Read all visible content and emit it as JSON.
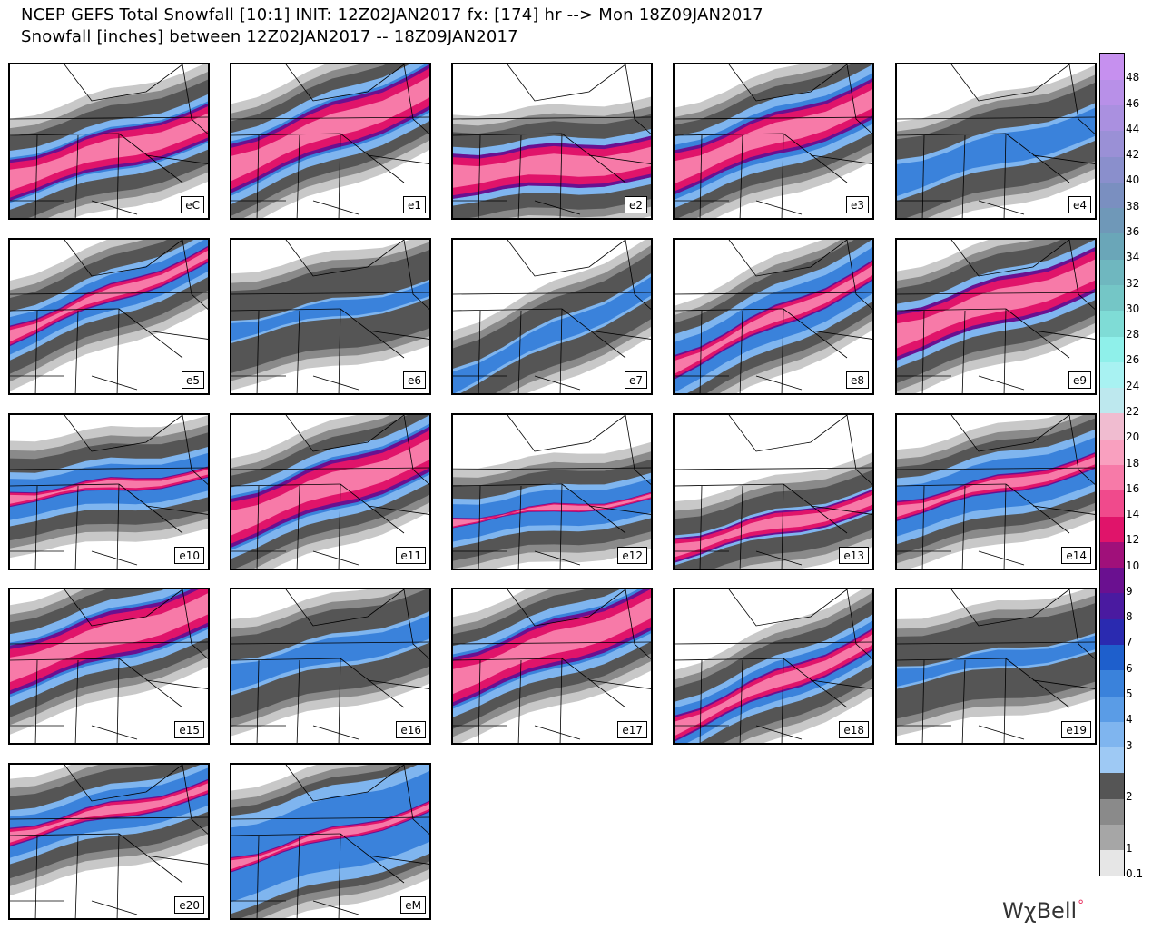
{
  "header": {
    "line1": "NCEP GEFS Total Snowfall [10:1] INIT: 12Z02JAN2017 fx: [174] hr --> Mon 18Z09JAN2017",
    "line2": "Snowfall [inches] between 12Z02JAN2017 -- 18Z09JAN2017"
  },
  "panels": [
    {
      "label": "eC"
    },
    {
      "label": "e1"
    },
    {
      "label": "e2"
    },
    {
      "label": "e3"
    },
    {
      "label": "e4"
    },
    {
      "label": "e5"
    },
    {
      "label": "e6"
    },
    {
      "label": "e7"
    },
    {
      "label": "e8"
    },
    {
      "label": "e9"
    },
    {
      "label": "e10"
    },
    {
      "label": "e11"
    },
    {
      "label": "e12"
    },
    {
      "label": "e13"
    },
    {
      "label": "e14"
    },
    {
      "label": "e15"
    },
    {
      "label": "e16"
    },
    {
      "label": "e17"
    },
    {
      "label": "e18"
    },
    {
      "label": "e19"
    },
    {
      "label": "e20"
    },
    {
      "label": "eM"
    }
  ],
  "color_scale": {
    "unit": "inches",
    "levels": [
      {
        "label": "0.1",
        "color": "#e6e6e6"
      },
      {
        "label": "1",
        "color": "#a6a6a6"
      },
      {
        "label": "",
        "color": "#8a8a8a"
      },
      {
        "label": "2",
        "color": "#555555"
      },
      {
        "label": "",
        "color": "#9ec9f4"
      },
      {
        "label": "3",
        "color": "#7fb5ef"
      },
      {
        "label": "4",
        "color": "#5a9ce6"
      },
      {
        "label": "5",
        "color": "#3a82db"
      },
      {
        "label": "6",
        "color": "#1e5fcc"
      },
      {
        "label": "7",
        "color": "#2a2ab0"
      },
      {
        "label": "8",
        "color": "#4a1aa0"
      },
      {
        "label": "9",
        "color": "#6a1090"
      },
      {
        "label": "10",
        "color": "#a0107a"
      },
      {
        "label": "12",
        "color": "#e0146a"
      },
      {
        "label": "14",
        "color": "#f04a8c"
      },
      {
        "label": "16",
        "color": "#f77aa8"
      },
      {
        "label": "18",
        "color": "#f9a0bf"
      },
      {
        "label": "20",
        "color": "#f0bcd0"
      },
      {
        "label": "22",
        "color": "#bde8ee"
      },
      {
        "label": "24",
        "color": "#a8f2f2"
      },
      {
        "label": "26",
        "color": "#8ff0ea"
      },
      {
        "label": "28",
        "color": "#7fdcd6"
      },
      {
        "label": "30",
        "color": "#74c6c6"
      },
      {
        "label": "32",
        "color": "#6fb7bf"
      },
      {
        "label": "34",
        "color": "#6aa6b8"
      },
      {
        "label": "36",
        "color": "#6f98b8"
      },
      {
        "label": "38",
        "color": "#7a8fc0"
      },
      {
        "label": "40",
        "color": "#8a8fcc"
      },
      {
        "label": "42",
        "color": "#9a90d6"
      },
      {
        "label": "44",
        "color": "#aa90e0"
      },
      {
        "label": "46",
        "color": "#b890e8"
      },
      {
        "label": "48",
        "color": "#c690ef"
      }
    ]
  },
  "brand": {
    "text": "WχBell"
  }
}
